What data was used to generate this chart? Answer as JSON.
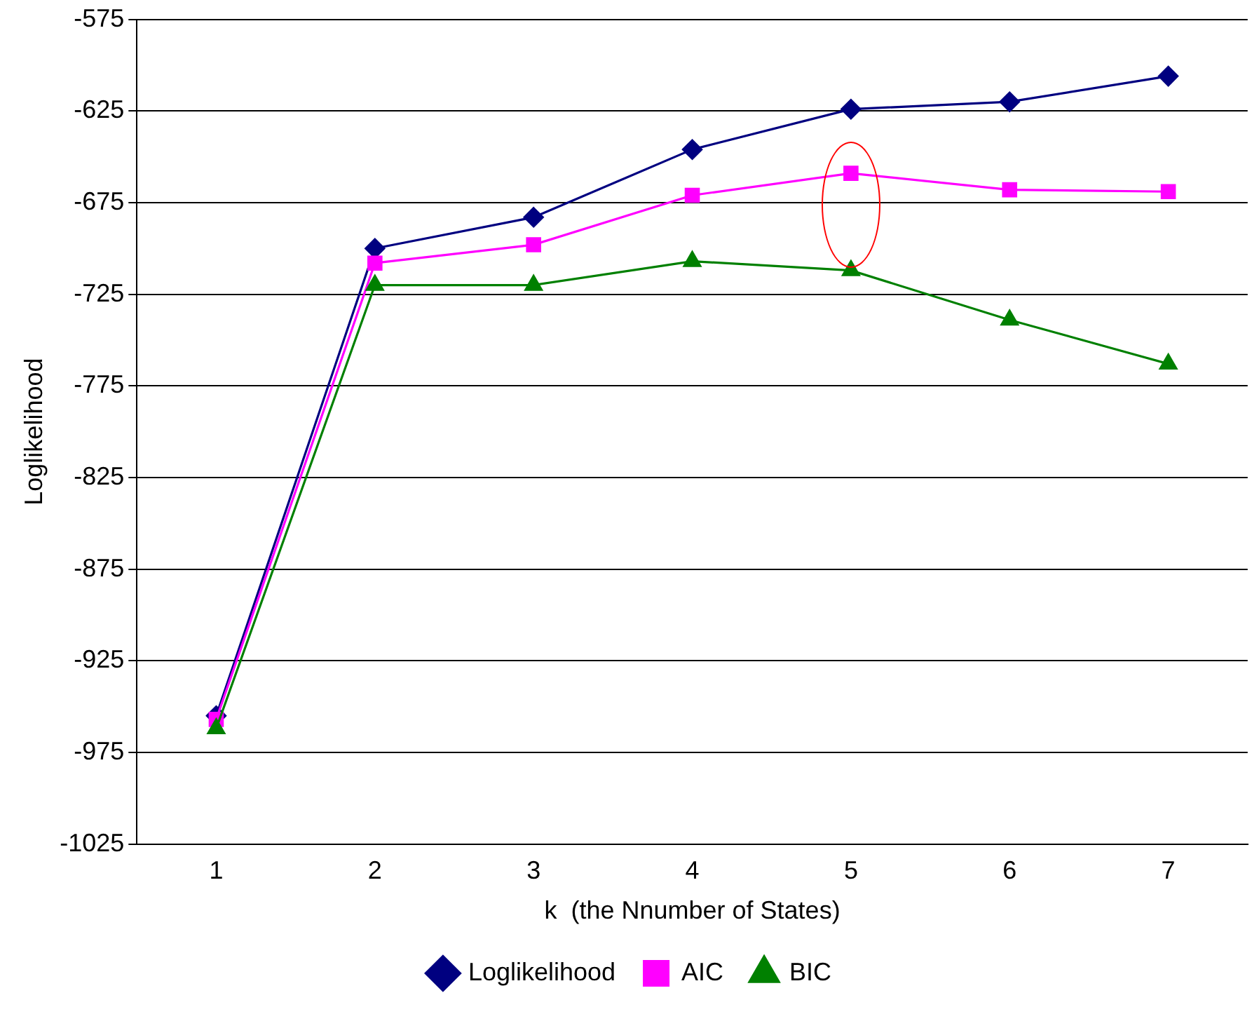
{
  "chart_data": {
    "type": "line",
    "xlabel": "k  (the Nnumber of States)",
    "ylabel": "Loglikelihood",
    "categories": [
      "1",
      "2",
      "3",
      "4",
      "5",
      "6",
      "7"
    ],
    "series": [
      {
        "name": "Loglikelihood",
        "color": "#000080",
        "marker": "diamond",
        "values": [
          -955,
          -700,
          -683,
          -646,
          -624,
          -620,
          -606
        ]
      },
      {
        "name": "AIC",
        "color": "#ff00ff",
        "marker": "square",
        "values": [
          -957,
          -708,
          -698,
          -671,
          -659,
          -668,
          -669
        ]
      },
      {
        "name": "BIC",
        "color": "#008000",
        "marker": "triangle",
        "values": [
          -962,
          -720,
          -720,
          -707,
          -712,
          -739,
          -763
        ]
      }
    ],
    "ylim": [
      -1025,
      -575
    ],
    "yticks": [
      -1025,
      -975,
      -925,
      -875,
      -825,
      -775,
      -725,
      -675,
      -625,
      -575
    ],
    "grid": "y",
    "legend": "bottom",
    "line_style": "solid"
  }
}
